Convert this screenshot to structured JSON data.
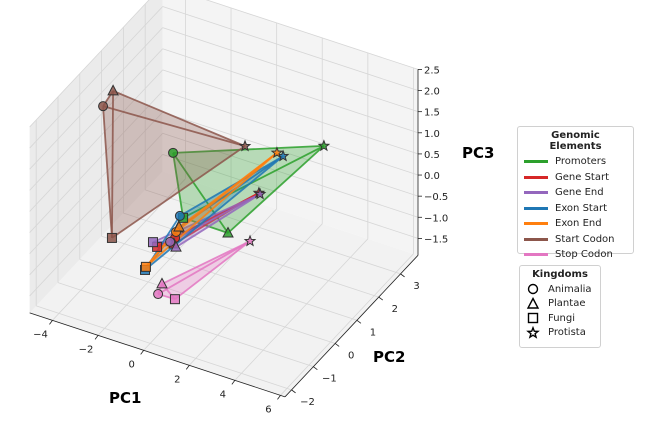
{
  "chart_data": {
    "type": "scatter3d",
    "xlabel": "PC1",
    "ylabel": "PC2",
    "zlabel": "PC3",
    "xlim": [
      -5,
      6.2
    ],
    "ylim": [
      -2.3,
      3.8
    ],
    "zlim": [
      -1.9,
      2.5
    ],
    "xticks": [
      -4,
      -2,
      0,
      2,
      4,
      6
    ],
    "yticks": [
      -2,
      -1,
      0,
      1,
      2,
      3
    ],
    "zticks": [
      -1.5,
      -1.0,
      -0.5,
      0.0,
      0.5,
      1.0,
      1.5,
      2.0,
      2.5
    ],
    "xtick_labels": [
      "−4",
      "−2",
      "0",
      "2",
      "4",
      "6"
    ],
    "ytick_labels": [
      "−2",
      "−1",
      "0",
      "1",
      "2",
      "3"
    ],
    "ztick_labels": [
      "−1.5",
      "−1.0",
      "−0.5",
      "0.0",
      "0.5",
      "1.0",
      "1.5",
      "2.0",
      "2.5"
    ],
    "grid": true,
    "kingdoms": [
      "Animalia",
      "Plantae",
      "Fungi",
      "Protista"
    ],
    "series": [
      {
        "name": "Promoters",
        "color": "#2ca02c",
        "points": [
          [
            -0.91,
            0,
            1.35
          ],
          [
            1.5,
            0,
            -0.12
          ],
          [
            -0.47,
            0,
            -0.11
          ],
          [
            4.75,
            1,
            1.97
          ]
        ]
      },
      {
        "name": "Gene Start",
        "color": "#d62728",
        "points": [
          [
            -0.82,
            0,
            -0.65
          ],
          [
            -0.87,
            0,
            -0.8
          ],
          [
            -1.61,
            0,
            -1.0
          ],
          [
            1.9,
            1,
            0.35
          ]
        ]
      },
      {
        "name": "Gene End",
        "color": "#9467bd",
        "points": [
          [
            -1.04,
            0,
            -0.78
          ],
          [
            -0.78,
            0,
            -0.86
          ],
          [
            -1.79,
            0,
            -0.92
          ],
          [
            1.95,
            1,
            0.33
          ]
        ]
      },
      {
        "name": "Exon Start",
        "color": "#1f77b4",
        "points": [
          [
            -0.61,
            0,
            -0.09
          ],
          [
            -0.69,
            0,
            -0.39
          ],
          [
            -2.14,
            0,
            -1.64
          ],
          [
            2.96,
            1,
            1.41
          ]
        ]
      },
      {
        "name": "Exon End",
        "color": "#ff7f0e",
        "points": [
          [
            -0.78,
            0,
            -0.5
          ],
          [
            -0.65,
            0,
            -0.36
          ],
          [
            -2.1,
            0,
            -1.56
          ],
          [
            2.69,
            1,
            1.44
          ]
        ]
      },
      {
        "name": "Start Codon",
        "color": "#8c564b",
        "points": [
          [
            -3.98,
            0,
            1.91
          ],
          [
            -3.54,
            0,
            2.35
          ],
          [
            -3.59,
            0,
            -1.14
          ],
          [
            1.29,
            1,
            1.35
          ]
        ]
      },
      {
        "name": "Stop Codon",
        "color": "#e377c2",
        "points": [
          [
            -0.61,
            -1,
            -1.39
          ],
          [
            -0.44,
            -1,
            -1.12
          ],
          [
            0.13,
            -1,
            -1.38
          ],
          [
            1.51,
            1,
            -0.86
          ]
        ]
      }
    ]
  },
  "legend_elements": {
    "title": "Genomic Elements",
    "items": [
      "Promoters",
      "Gene Start",
      "Gene End",
      "Exon Start",
      "Exon End",
      "Start Codon",
      "Stop Codon"
    ],
    "colors": [
      "#2ca02c",
      "#d62728",
      "#9467bd",
      "#1f77b4",
      "#ff7f0e",
      "#8c564b",
      "#e377c2"
    ]
  },
  "legend_kingdoms": {
    "title": "Kingdoms",
    "items": [
      "Animalia",
      "Plantae",
      "Fungi",
      "Protista"
    ],
    "markers": [
      "circle",
      "triangle",
      "square",
      "star"
    ]
  }
}
